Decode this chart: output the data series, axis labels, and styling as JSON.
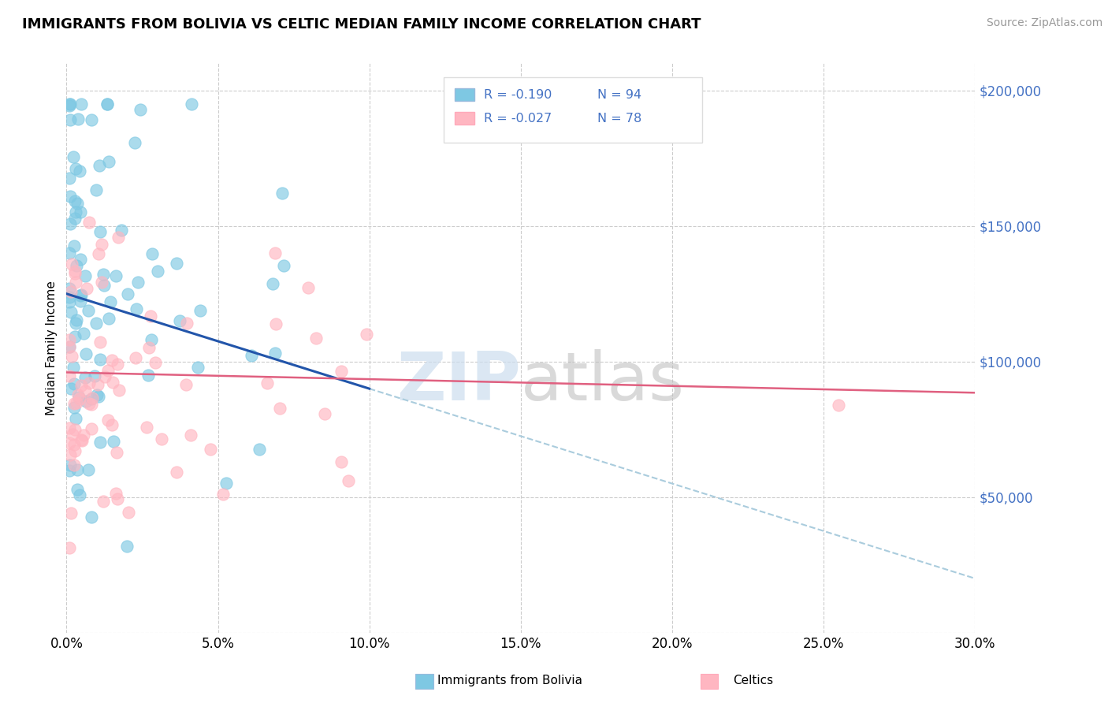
{
  "title": "IMMIGRANTS FROM BOLIVIA VS CELTIC MEDIAN FAMILY INCOME CORRELATION CHART",
  "source_text": "Source: ZipAtlas.com",
  "ylabel": "Median Family Income",
  "xlim": [
    0.0,
    0.3
  ],
  "ylim": [
    0,
    210000
  ],
  "xtick_labels": [
    "0.0%",
    "5.0%",
    "10.0%",
    "15.0%",
    "20.0%",
    "25.0%",
    "30.0%"
  ],
  "xtick_values": [
    0.0,
    0.05,
    0.1,
    0.15,
    0.2,
    0.25,
    0.3
  ],
  "ytick_values": [
    0,
    50000,
    100000,
    150000,
    200000
  ],
  "ytick_labels": [
    "",
    "$50,000",
    "$100,000",
    "$150,000",
    "$200,000"
  ],
  "series1_color": "#7EC8E3",
  "series2_color": "#FFB6C1",
  "series1_label": "Immigrants from Bolivia",
  "series2_label": "Celtics",
  "series1_R": "-0.190",
  "series1_N": "94",
  "series2_R": "-0.027",
  "series2_N": "78",
  "blue_line_color": "#2255AA",
  "pink_line_color": "#E06080",
  "dash_line_color": "#AACCDD",
  "legend_text_color": "#4472C4",
  "watermark": "ZIPatlas",
  "background_color": "#FFFFFF",
  "grid_color": "#CCCCCC"
}
